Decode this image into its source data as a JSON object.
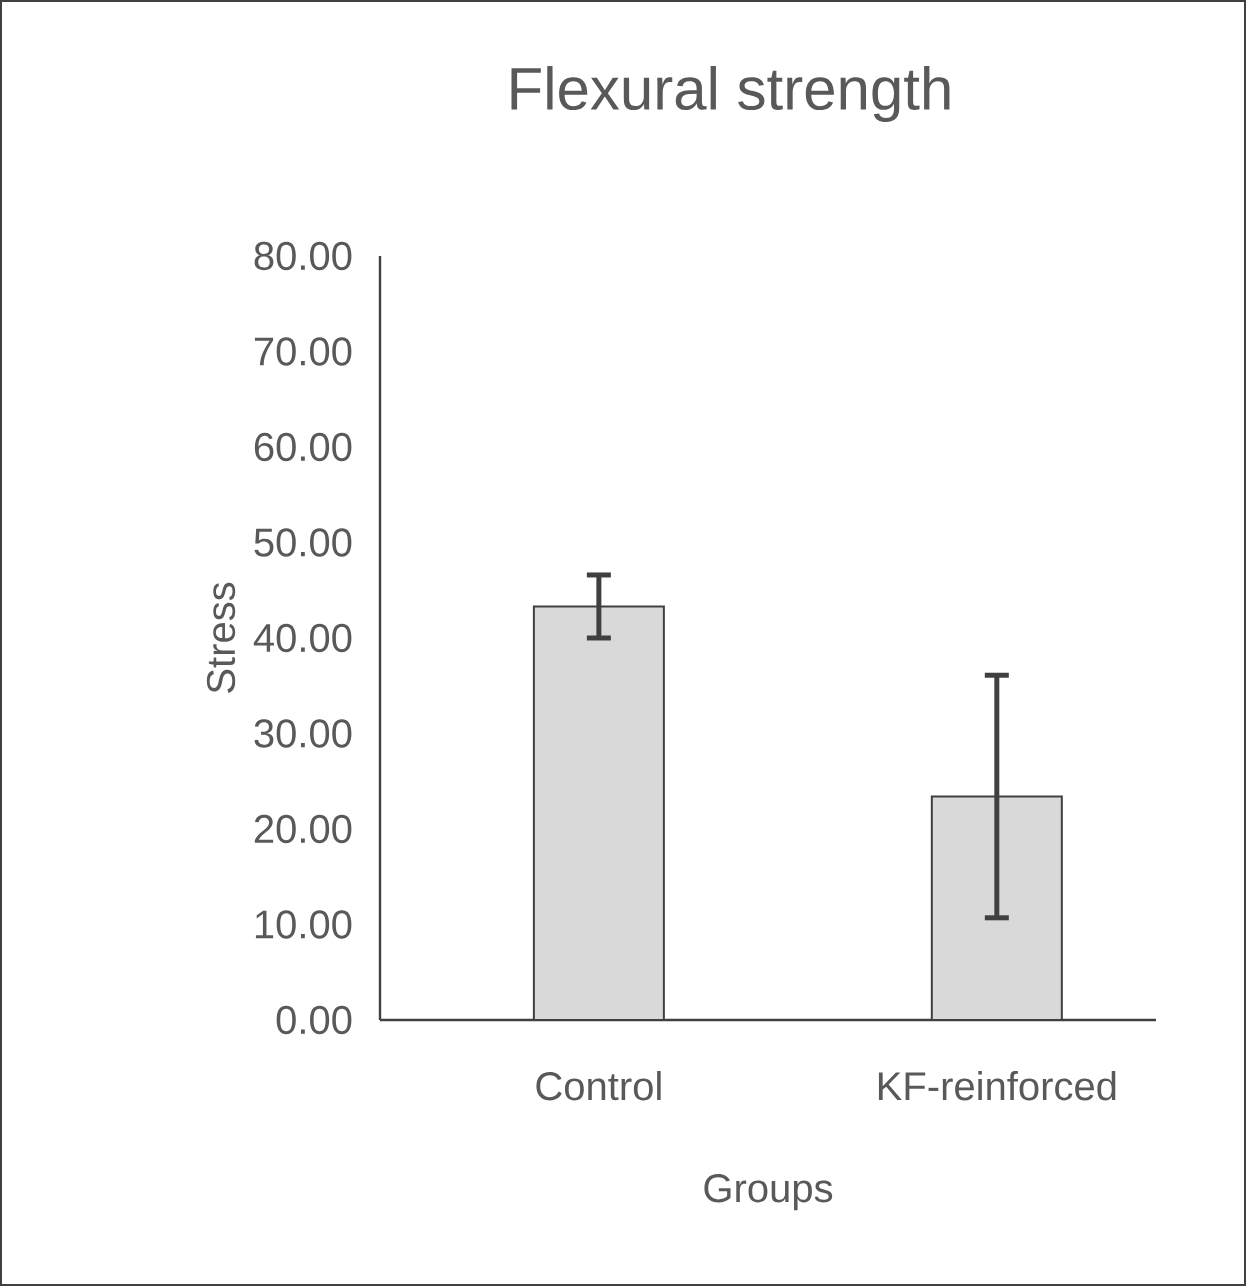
{
  "chart_data": {
    "type": "bar",
    "title": "Flexural strength",
    "xlabel": "Groups",
    "ylabel": "Stress",
    "categories": [
      "Control",
      "KF-reinforced"
    ],
    "values": [
      43.3,
      23.4
    ],
    "errors": [
      3.3,
      12.7
    ],
    "color": "#d9d9d9",
    "ylim": [
      0,
      80
    ],
    "yticks": [
      {
        "value": 0,
        "label": "0.00"
      },
      {
        "value": 10,
        "label": "10.00"
      },
      {
        "value": 20,
        "label": "20.00"
      },
      {
        "value": 30,
        "label": "30.00"
      },
      {
        "value": 40,
        "label": "40.00"
      },
      {
        "value": 50,
        "label": "50.00"
      },
      {
        "value": 60,
        "label": "60.00"
      },
      {
        "value": 70,
        "label": "70.00"
      },
      {
        "value": 80,
        "label": "80.00"
      }
    ],
    "grid": false
  }
}
